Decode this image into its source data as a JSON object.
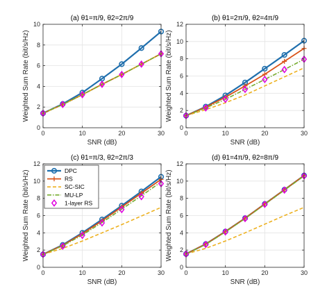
{
  "colors": {
    "DPC": "#1f6fad",
    "RS": "#d95319",
    "SC-SIC": "#edb120",
    "MU-LP": "#77ac30",
    "1-layer RS": "#e000e0",
    "grid": "#e3e3e3",
    "axis": "#262626"
  },
  "chart_data": [
    {
      "type": "line",
      "title": "(a) θ1=π/9, θ2=2π/9",
      "xlabel": "SNR (dB)",
      "ylabel": "Weighted Sum Rate (bit/s/Hz)",
      "xlim": [
        0,
        30
      ],
      "ylim": [
        0,
        10
      ],
      "xticks": [
        0,
        10,
        20,
        30
      ],
      "yticks": [
        0,
        2,
        4,
        6,
        8,
        10
      ],
      "grid": true,
      "x": [
        0,
        5,
        10,
        15,
        20,
        25,
        30
      ],
      "series": [
        {
          "name": "DPC",
          "values": [
            1.4,
            2.3,
            3.4,
            4.75,
            6.15,
            7.7,
            9.3
          ]
        },
        {
          "name": "RS",
          "values": [
            1.4,
            2.25,
            3.2,
            4.2,
            5.15,
            6.15,
            7.15
          ]
        },
        {
          "name": "SC-SIC",
          "values": [
            1.4,
            2.25,
            3.2,
            4.2,
            5.15,
            6.15,
            7.15
          ]
        },
        {
          "name": "MU-LP",
          "values": [
            1.4,
            2.25,
            3.2,
            4.2,
            5.15,
            6.15,
            7.15
          ]
        },
        {
          "name": "1-layer RS",
          "values": [
            1.4,
            2.25,
            3.2,
            4.2,
            5.15,
            6.15,
            7.15
          ]
        }
      ]
    },
    {
      "type": "line",
      "title": "(b) θ1=2π/9, θ2=4π/9",
      "xlabel": "SNR (dB)",
      "ylabel": "Weighted Sum Rate (bit/s/Hz)",
      "xlim": [
        0,
        30
      ],
      "ylim": [
        0,
        12
      ],
      "xticks": [
        0,
        10,
        20,
        30
      ],
      "yticks": [
        0,
        2,
        4,
        6,
        8,
        10,
        12
      ],
      "grid": true,
      "x": [
        0,
        5,
        10,
        15,
        20,
        25,
        30
      ],
      "series": [
        {
          "name": "DPC",
          "values": [
            1.4,
            2.45,
            3.75,
            5.25,
            6.85,
            8.45,
            10.1
          ]
        },
        {
          "name": "RS",
          "values": [
            1.4,
            2.4,
            3.55,
            4.85,
            6.2,
            7.7,
            9.2
          ]
        },
        {
          "name": "SC-SIC",
          "values": [
            1.4,
            2.1,
            2.9,
            3.8,
            4.85,
            5.9,
            6.95
          ]
        },
        {
          "name": "MU-LP",
          "values": [
            1.4,
            2.3,
            3.3,
            4.45,
            5.6,
            6.75,
            7.95
          ]
        },
        {
          "name": "1-layer RS",
          "values": [
            1.4,
            2.3,
            3.3,
            4.45,
            5.6,
            6.75,
            7.95
          ]
        }
      ]
    },
    {
      "type": "line",
      "title": "(c) θ1=π/3, θ2=2π/3",
      "xlabel": "SNR (dB)",
      "ylabel": "Weighted Sum Rate (bit/s/Hz)",
      "xlim": [
        0,
        30
      ],
      "ylim": [
        0,
        12
      ],
      "xticks": [
        0,
        10,
        20,
        30
      ],
      "yticks": [
        0,
        2,
        4,
        6,
        8,
        10,
        12
      ],
      "grid": true,
      "legend": "top-left",
      "x": [
        0,
        5,
        10,
        15,
        20,
        25,
        30
      ],
      "series": [
        {
          "name": "DPC",
          "values": [
            1.5,
            2.6,
            4.0,
            5.55,
            7.15,
            8.8,
            10.5
          ]
        },
        {
          "name": "RS",
          "values": [
            1.5,
            2.55,
            3.9,
            5.4,
            7.0,
            8.6,
            10.2
          ]
        },
        {
          "name": "SC-SIC",
          "values": [
            1.5,
            2.2,
            3.05,
            4.0,
            4.95,
            5.95,
            6.95
          ]
        },
        {
          "name": "MU-LP",
          "values": [
            1.5,
            2.5,
            3.75,
            5.2,
            6.75,
            8.3,
            9.9
          ]
        },
        {
          "name": "1-layer RS",
          "values": [
            1.5,
            2.45,
            3.7,
            5.15,
            6.7,
            8.2,
            9.7
          ]
        }
      ]
    },
    {
      "type": "line",
      "title": "(d) θ1=4π/9, θ2=8π/9",
      "xlabel": "SNR (dB)",
      "ylabel": "Weighted Sum Rate (bit/s/Hz)",
      "xlim": [
        0,
        30
      ],
      "ylim": [
        0,
        12
      ],
      "xticks": [
        0,
        10,
        20,
        30
      ],
      "yticks": [
        0,
        2,
        4,
        6,
        8,
        10,
        12
      ],
      "grid": true,
      "x": [
        0,
        5,
        10,
        15,
        20,
        25,
        30
      ],
      "series": [
        {
          "name": "DPC",
          "values": [
            1.55,
            2.7,
            4.15,
            5.7,
            7.35,
            9.0,
            10.65
          ]
        },
        {
          "name": "RS",
          "values": [
            1.55,
            2.7,
            4.15,
            5.7,
            7.35,
            9.0,
            10.65
          ]
        },
        {
          "name": "SC-SIC",
          "values": [
            1.55,
            2.2,
            3.05,
            4.0,
            5.0,
            6.0,
            6.95
          ]
        },
        {
          "name": "MU-LP",
          "values": [
            1.55,
            2.65,
            4.1,
            5.65,
            7.3,
            8.95,
            10.6
          ]
        },
        {
          "name": "1-layer RS",
          "values": [
            1.55,
            2.65,
            4.1,
            5.65,
            7.3,
            8.95,
            10.6
          ]
        }
      ]
    }
  ]
}
